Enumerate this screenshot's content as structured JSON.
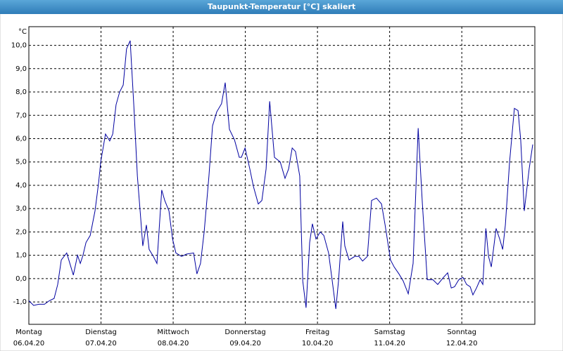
{
  "chart_data": {
    "type": "line",
    "title": "Taupunkt-Temperatur [°C] skaliert",
    "y_unit": "°C",
    "x": [
      0,
      1.6,
      3.3,
      5.2,
      6.8,
      8.4,
      9.6,
      10.8,
      12.6,
      13.3,
      14.8,
      16.2,
      17.1,
      18.0,
      19.0,
      20.4,
      22.0,
      23.2,
      23.9,
      25.5,
      26.9,
      27.9,
      29.0,
      30.2,
      31.4,
      32.5,
      33.7,
      34.9,
      36.1,
      37.2,
      37.9,
      39.1,
      40.0,
      41.4,
      42.6,
      44.2,
      45.2,
      46.6,
      47.8,
      48.9,
      50.8,
      52.4,
      54.8,
      55.9,
      57.1,
      58.3,
      59.9,
      61.1,
      62.5,
      64.1,
      65.3,
      66.7,
      68.4,
      70.0,
      70.7,
      71.9,
      73.5,
      74.7,
      76.3,
      77.5,
      78.9,
      80.1,
      81.7,
      83.6,
      85.2,
      86.4,
      87.6,
      88.7,
      90.1,
      91.1,
      92.2,
      93.4,
      94.3,
      95.5,
      96.9,
      98.1,
      99.7,
      100.9,
      102.1,
      103.0,
      104.4,
      105.1,
      106.5,
      108.4,
      109.8,
      111.0,
      112.6,
      114.0,
      115.6,
      117.3,
      118.5,
      120.3,
      121.5,
      123.1,
      124.5,
      126.2,
      127.8,
      129.5,
      130.9,
      132.5,
      134.4,
      136.0,
      137.9,
      139.3,
      140.5,
      141.6,
      143.0,
      144.4,
      145.6,
      146.8,
      147.7,
      148.9,
      150.1,
      151.0,
      152.0,
      152.9,
      153.8,
      155.4,
      156.6,
      157.6,
      158.5,
      159.9,
      161.5,
      162.7,
      163.6,
      164.8,
      166.4,
      167.6
    ],
    "series": [
      {
        "color": "#0000a0",
        "values": [
          -0.95,
          -1.15,
          -1.1,
          -1.1,
          -0.95,
          -0.85,
          -0.25,
          0.8,
          1.1,
          0.8,
          0.15,
          1.0,
          0.65,
          1.0,
          1.55,
          1.85,
          2.9,
          4.1,
          5.0,
          6.2,
          5.9,
          6.2,
          7.45,
          8.0,
          8.3,
          9.85,
          10.2,
          7.45,
          4.4,
          2.6,
          1.4,
          2.3,
          1.25,
          0.95,
          0.65,
          3.8,
          3.35,
          2.9,
          1.7,
          1.1,
          0.95,
          1.05,
          1.1,
          0.2,
          0.65,
          2.0,
          4.4,
          6.55,
          7.15,
          7.5,
          8.4,
          6.4,
          5.95,
          5.2,
          5.2,
          5.6,
          4.7,
          3.95,
          3.2,
          3.35,
          4.7,
          7.6,
          5.2,
          5.0,
          4.3,
          4.7,
          5.6,
          5.45,
          4.4,
          -0.1,
          -1.25,
          1.55,
          2.35,
          1.7,
          2.0,
          1.85,
          1.1,
          -0.1,
          -1.3,
          -0.1,
          2.45,
          1.4,
          0.8,
          0.95,
          0.95,
          0.75,
          0.95,
          3.35,
          3.45,
          3.2,
          2.3,
          0.8,
          0.5,
          0.2,
          -0.1,
          -0.65,
          0.65,
          6.45,
          3.2,
          -0.05,
          -0.05,
          -0.25,
          0.05,
          0.25,
          -0.4,
          -0.35,
          -0.05,
          0.05,
          -0.25,
          -0.35,
          -0.7,
          -0.4,
          -0.05,
          -0.25,
          2.15,
          0.95,
          0.5,
          2.15,
          1.7,
          1.25,
          2.3,
          5.0,
          7.3,
          7.2,
          5.95,
          2.9,
          4.7,
          5.75
        ]
      }
    ],
    "xlim": [
      0,
      168.3
    ],
    "ylim": [
      -1.96,
      10.8
    ],
    "xticks": [
      {
        "value": 0,
        "label": "Montag"
      },
      {
        "value": 24,
        "label": "Dienstag"
      },
      {
        "value": 48,
        "label": "Mittwoch"
      },
      {
        "value": 72,
        "label": "Donnerstag"
      },
      {
        "value": 96,
        "label": "Freitag"
      },
      {
        "value": 120,
        "label": "Samstag"
      },
      {
        "value": 144,
        "label": "Sonntag"
      }
    ],
    "xtick_dates": [
      "06.04.20",
      "07.04.20",
      "08.04.20",
      "09.04.20",
      "10.04.20",
      "11.04.20",
      "12.04.20"
    ],
    "yticks": [
      {
        "value": -1,
        "label": "-1,0"
      },
      {
        "value": 0,
        "label": "0,0"
      },
      {
        "value": 1,
        "label": "1,0"
      },
      {
        "value": 2,
        "label": "2,0"
      },
      {
        "value": 3,
        "label": "3,0"
      },
      {
        "value": 4,
        "label": "4,0"
      },
      {
        "value": 5,
        "label": "5,0"
      },
      {
        "value": 6,
        "label": "6,0"
      },
      {
        "value": 7,
        "label": "7,0"
      },
      {
        "value": 8,
        "label": "8,0"
      },
      {
        "value": 9,
        "label": "9,0"
      },
      {
        "value": 10,
        "label": "10,0"
      }
    ],
    "grid": true
  }
}
